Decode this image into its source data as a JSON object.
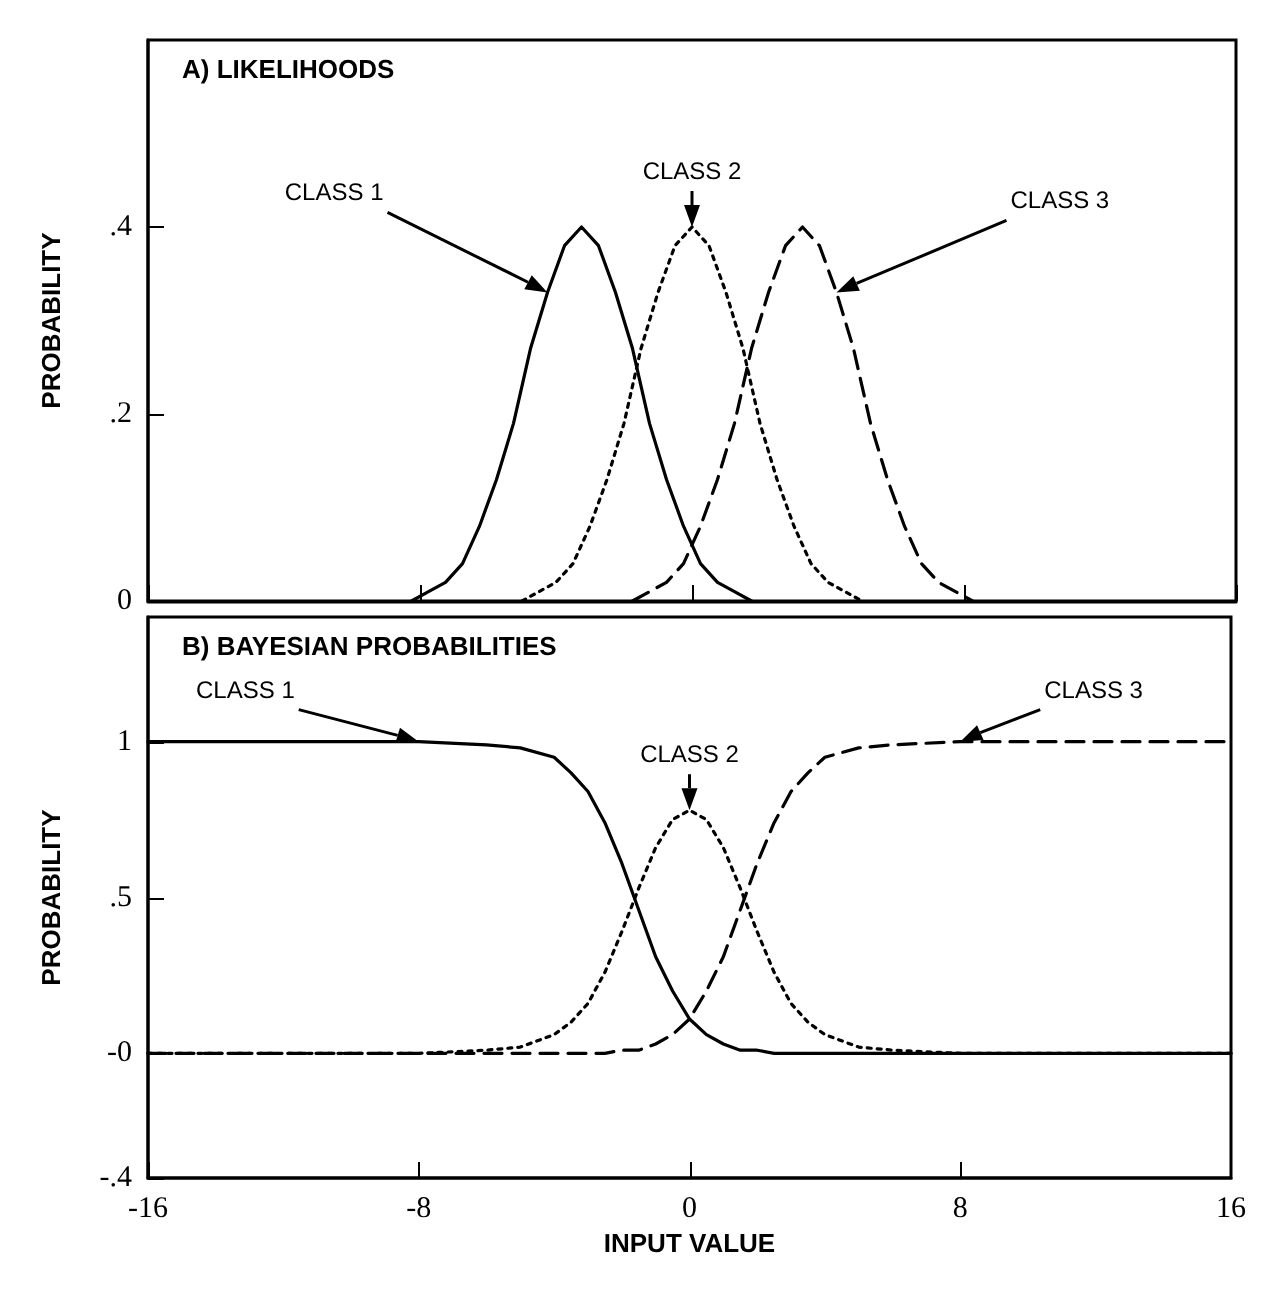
{
  "chart_data": [
    {
      "type": "line",
      "title": "A) LIKELIHOODS",
      "ylabel": "PROBABILITY",
      "xlim": [
        -16,
        16
      ],
      "xticks": [
        -16,
        -8,
        0,
        8,
        16
      ],
      "ylim": [
        0,
        0.6
      ],
      "yticks": [
        0,
        {
          "value": 0.2,
          "label": ".2"
        },
        {
          "value": 0.4,
          "label": ".4"
        }
      ],
      "tick_labels": "y",
      "series": [
        {
          "name": "CLASS 1",
          "color": "#000000",
          "line_style": "solid",
          "x": [
            -8.25,
            -7.75,
            -7.25,
            -6.75,
            -6.25,
            -5.75,
            -5.25,
            -4.75,
            -4.25,
            -3.75,
            -3.25,
            -2.75,
            -2.25,
            -1.75,
            -1.25,
            -0.75,
            -0.25,
            0.25,
            0.75,
            1.25,
            1.75
          ],
          "values": [
            0,
            0.01,
            0.02,
            0.04,
            0.08,
            0.13,
            0.19,
            0.27,
            0.33,
            0.38,
            0.4,
            0.38,
            0.33,
            0.27,
            0.19,
            0.13,
            0.08,
            0.04,
            0.02,
            0.01,
            0
          ]
        },
        {
          "name": "CLASS 2",
          "color": "#000000",
          "line_style": "dotted",
          "x": [
            -5,
            -4.5,
            -4,
            -3.5,
            -3,
            -2.5,
            -2,
            -1.5,
            -1,
            -0.5,
            0,
            0.5,
            1,
            1.5,
            2,
            2.5,
            3,
            3.5,
            4,
            4.5,
            5
          ],
          "values": [
            0,
            0.01,
            0.02,
            0.04,
            0.08,
            0.13,
            0.19,
            0.27,
            0.33,
            0.38,
            0.4,
            0.38,
            0.33,
            0.27,
            0.19,
            0.13,
            0.08,
            0.04,
            0.02,
            0.01,
            0
          ]
        },
        {
          "name": "CLASS 3",
          "color": "#000000",
          "line_style": "dashed",
          "x": [
            -1.75,
            -1.25,
            -0.75,
            -0.25,
            0.25,
            0.75,
            1.25,
            1.75,
            2.25,
            2.75,
            3.25,
            3.75,
            4.25,
            4.75,
            5.25,
            5.75,
            6.25,
            6.75,
            7.25,
            7.75,
            8.25
          ],
          "values": [
            0,
            0.01,
            0.02,
            0.04,
            0.08,
            0.13,
            0.19,
            0.27,
            0.33,
            0.38,
            0.4,
            0.38,
            0.33,
            0.27,
            0.19,
            0.13,
            0.08,
            0.04,
            0.02,
            0.01,
            0
          ]
        }
      ]
    },
    {
      "type": "line",
      "title": "B) BAYESIAN PROBABILITIES",
      "xlabel": "INPUT VALUE",
      "ylabel": "PROBABILITY",
      "xlim": [
        -16,
        16
      ],
      "xticks": [
        -16,
        -8,
        0,
        8,
        16
      ],
      "ylim": [
        -0.4,
        1.4
      ],
      "yticks": [
        {
          "value": -0.4,
          "label": "-.4"
        },
        {
          "value": 0,
          "label": "-0"
        },
        {
          "value": 0.5,
          "label": ".5"
        },
        1
      ],
      "x": [
        -16,
        -8,
        -6,
        -5,
        -4,
        -3.5,
        -3,
        -2.5,
        -2,
        -1.5,
        -1,
        -0.5,
        0,
        0.5,
        1,
        1.5,
        2,
        2.5,
        3,
        3.5,
        4,
        5,
        6,
        8,
        16
      ],
      "series": [
        {
          "name": "CLASS 1",
          "color": "#000000",
          "line_style": "solid",
          "values": [
            1,
            1,
            0.99,
            0.98,
            0.95,
            0.9,
            0.84,
            0.74,
            0.61,
            0.46,
            0.31,
            0.2,
            0.11,
            0.06,
            0.03,
            0.01,
            0.01,
            0,
            0,
            0,
            0,
            0,
            0,
            0,
            0
          ]
        },
        {
          "name": "CLASS 2",
          "color": "#000000",
          "line_style": "dotted",
          "values": [
            0,
            0,
            0.01,
            0.02,
            0.06,
            0.1,
            0.16,
            0.26,
            0.39,
            0.53,
            0.66,
            0.75,
            0.78,
            0.75,
            0.66,
            0.53,
            0.39,
            0.26,
            0.16,
            0.1,
            0.06,
            0.02,
            0.01,
            0,
            0
          ]
        },
        {
          "name": "CLASS 3",
          "color": "#000000",
          "line_style": "dashed",
          "values": [
            0,
            0,
            0,
            0,
            0,
            0,
            0,
            0,
            0.01,
            0.01,
            0.03,
            0.06,
            0.11,
            0.2,
            0.31,
            0.46,
            0.61,
            0.74,
            0.84,
            0.9,
            0.95,
            0.98,
            0.99,
            1,
            1
          ]
        }
      ]
    }
  ]
}
